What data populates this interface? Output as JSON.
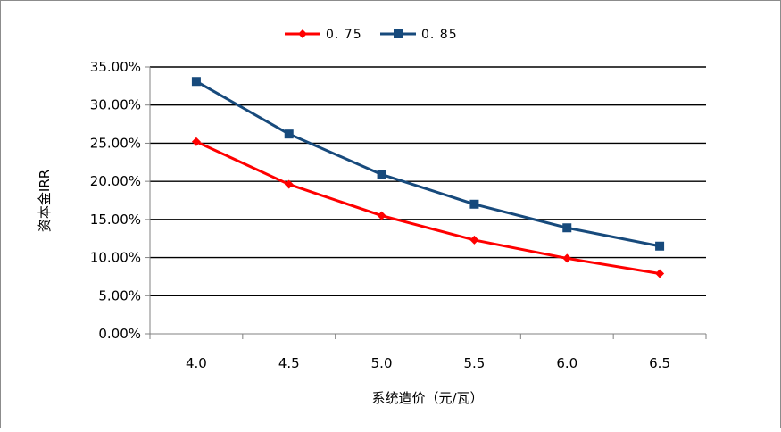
{
  "chart_data": {
    "type": "line",
    "title": "",
    "xlabel": "系统造价（元/瓦）",
    "ylabel": "资本金IRR",
    "categories": [
      "4.0",
      "4.5",
      "5.0",
      "5.5",
      "6.0",
      "6.5"
    ],
    "y_ticks": [
      "0.00%",
      "5.00%",
      "10.00%",
      "15.00%",
      "20.00%",
      "25.00%",
      "30.00%",
      "35.00%"
    ],
    "ylim": [
      0,
      0.35
    ],
    "grid": "horizontal",
    "legend_position": "top",
    "series": [
      {
        "name": "0. 75",
        "color": "#ff0000",
        "marker": "diamond",
        "values": [
          0.252,
          0.196,
          0.155,
          0.123,
          0.099,
          0.079
        ]
      },
      {
        "name": "0. 85",
        "color": "#174a7c",
        "marker": "square",
        "values": [
          0.331,
          0.262,
          0.209,
          0.17,
          0.139,
          0.115
        ]
      }
    ]
  }
}
